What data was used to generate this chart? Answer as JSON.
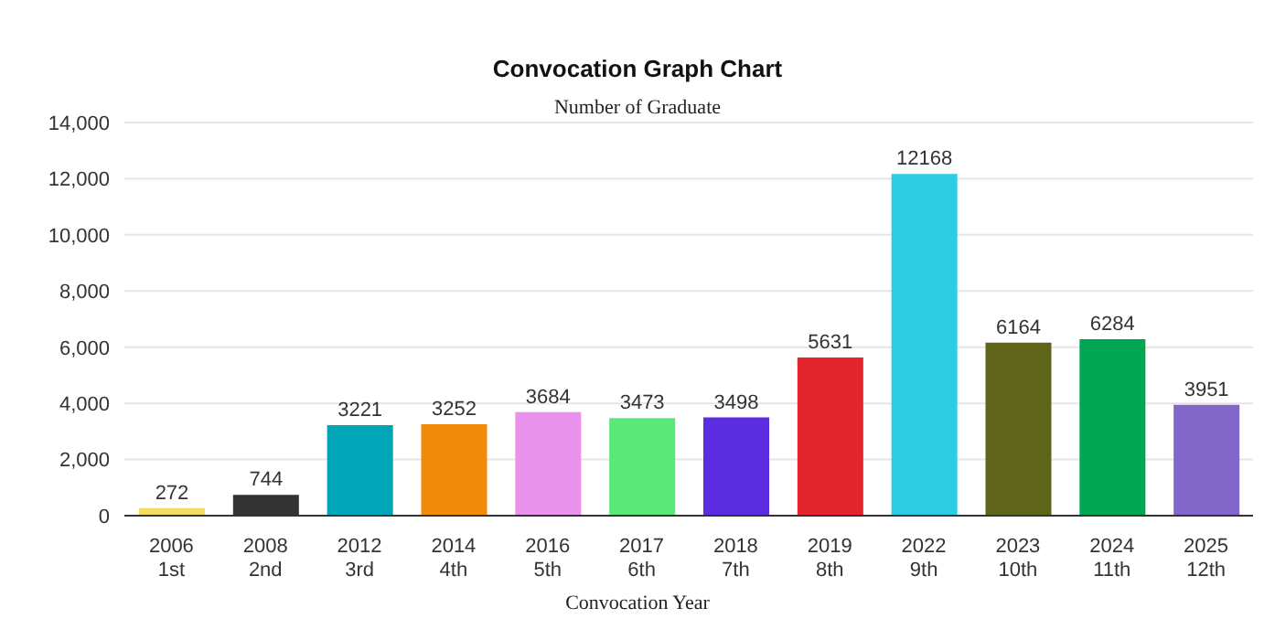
{
  "chart_data": {
    "type": "bar",
    "title": "Convocation Graph Chart",
    "subtitle": "Number of Graduate",
    "xlabel": "Convocation Year",
    "categories": [
      "2006\n1st",
      "2008\n2nd",
      "2012\n3rd",
      "2014\n4th",
      "2016\n5th",
      "2017\n6th",
      "2018\n7th",
      "2019\n8th",
      "2022\n9th",
      "2023\n10th",
      "2024\n11th",
      "2025\n12th"
    ],
    "values": [
      272,
      744,
      3221,
      3252,
      3684,
      3473,
      3498,
      5631,
      12168,
      6164,
      6284,
      3951
    ],
    "colors": [
      "#f5dc5f",
      "#333333",
      "#00a6b8",
      "#f28a0c",
      "#e992ec",
      "#5ae87a",
      "#5b2de0",
      "#e3262e",
      "#2ccde3",
      "#5e6419",
      "#00a651",
      "#8266c8"
    ],
    "ylim": [
      0,
      14000
    ],
    "yticks": [
      {
        "value": 0,
        "label": "0"
      },
      {
        "value": 2000,
        "label": "2,000"
      },
      {
        "value": 4000,
        "label": "4,000"
      },
      {
        "value": 6000,
        "label": "6,000"
      },
      {
        "value": 8000,
        "label": "8,000"
      },
      {
        "value": 10000,
        "label": "10,000"
      },
      {
        "value": 12000,
        "label": "12,000"
      },
      {
        "value": 14000,
        "label": "14,000"
      }
    ],
    "grid": "y",
    "data_labels": true
  }
}
